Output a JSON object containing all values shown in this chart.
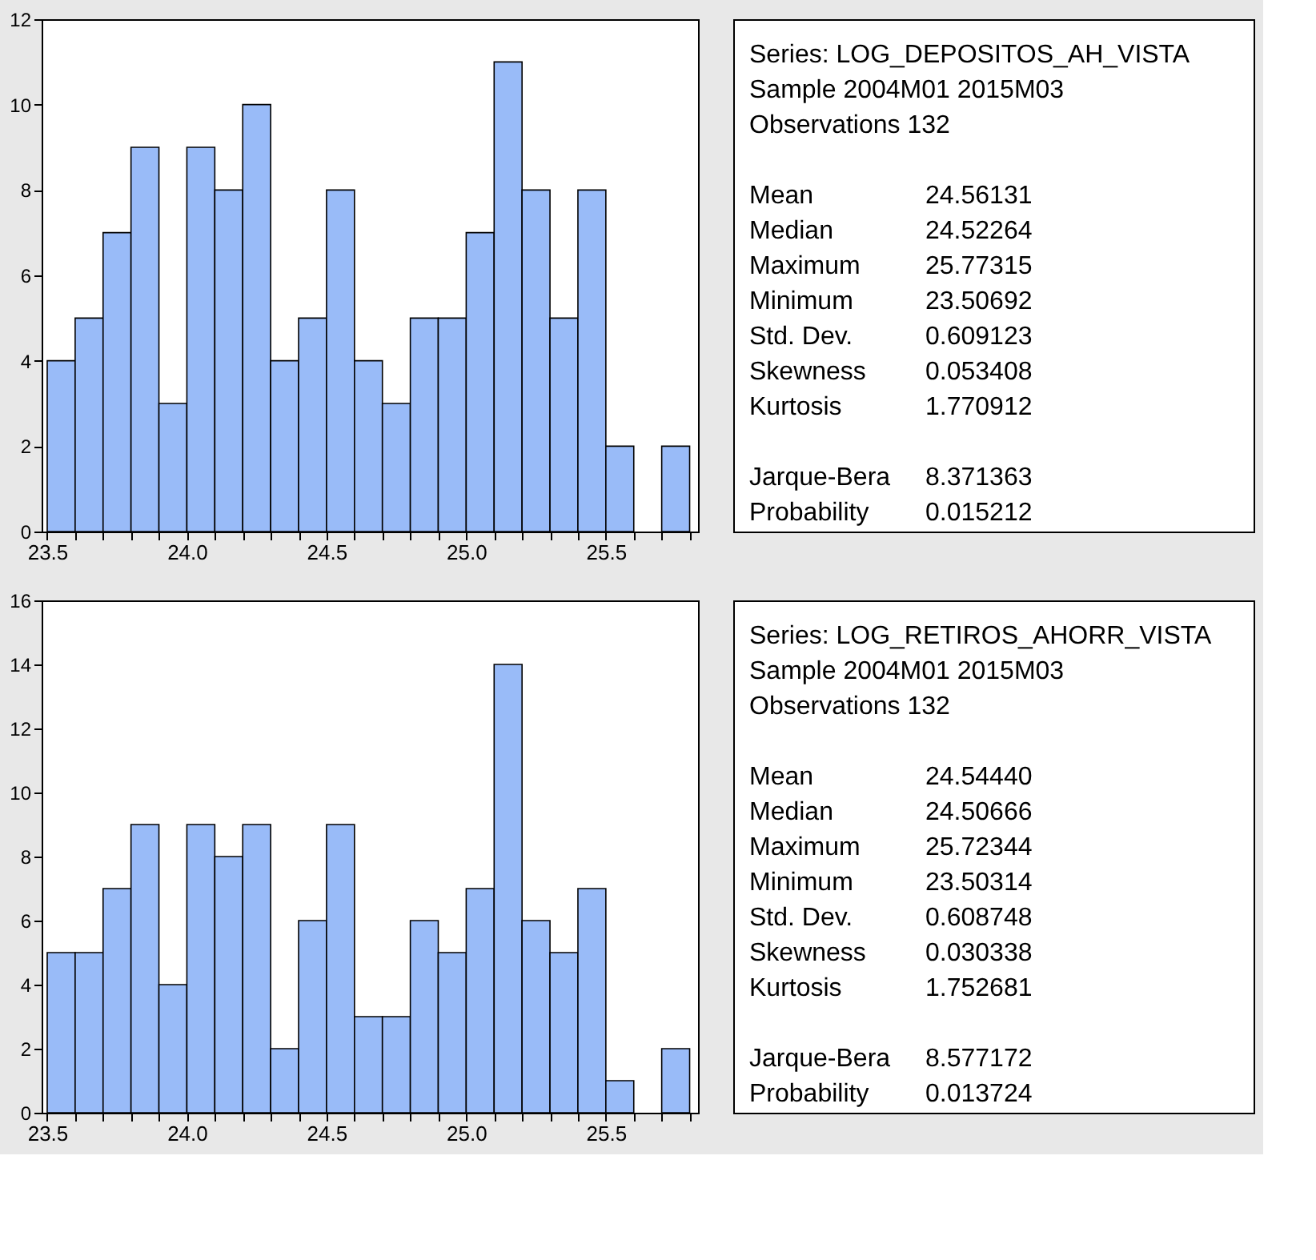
{
  "chart_data": [
    {
      "type": "histogram",
      "bins": [
        23.5,
        23.6,
        23.7,
        23.8,
        23.9,
        24.0,
        24.1,
        24.2,
        24.3,
        24.4,
        24.5,
        24.6,
        24.7,
        24.8,
        24.9,
        25.0,
        25.1,
        25.2,
        25.3,
        25.4,
        25.5,
        25.6,
        25.7,
        25.8
      ],
      "values": [
        4,
        5,
        7,
        9,
        3,
        9,
        8,
        10,
        4,
        5,
        8,
        4,
        3,
        5,
        5,
        7,
        11,
        8,
        5,
        8,
        2,
        0,
        2
      ],
      "color": "#99bbf8",
      "xlim": [
        23.48,
        25.83
      ],
      "xticks": [
        23.5,
        {
          "value": 23.6,
          "label": null
        },
        {
          "value": 23.7,
          "label": null
        },
        {
          "value": 23.8,
          "label": null
        },
        {
          "value": 23.9,
          "label": null
        },
        {
          "value": 24.0,
          "label": "24.0"
        },
        {
          "value": 24.1,
          "label": null
        },
        {
          "value": 24.2,
          "label": null
        },
        {
          "value": 24.3,
          "label": null
        },
        {
          "value": 24.4,
          "label": null
        },
        24.5,
        {
          "value": 24.6,
          "label": null
        },
        {
          "value": 24.7,
          "label": null
        },
        {
          "value": 24.8,
          "label": null
        },
        {
          "value": 24.9,
          "label": null
        },
        {
          "value": 25.0,
          "label": "25.0"
        },
        {
          "value": 25.1,
          "label": null
        },
        {
          "value": 25.2,
          "label": null
        },
        {
          "value": 25.3,
          "label": null
        },
        {
          "value": 25.4,
          "label": null
        },
        25.5,
        {
          "value": 25.6,
          "label": null
        },
        {
          "value": 25.7,
          "label": null
        },
        {
          "value": 25.8,
          "label": null
        }
      ],
      "ylim": [
        0,
        12
      ],
      "yticks": [
        0,
        2,
        4,
        6,
        8,
        10,
        12
      ],
      "grid": false,
      "annotations": [
        "Series: LOG_DEPOSITOS_AH_VISTA",
        "Sample 2004M01 2015M03",
        "Observations 132",
        "Mean 24.56131",
        "Median 24.52264",
        "Maximum 25.77315",
        "Minimum 23.50692",
        "Std. Dev. 0.609123",
        "Skewness 0.053408",
        "Kurtosis 1.770912",
        "Jarque-Bera 8.371363",
        "Probability 0.015212"
      ]
    },
    {
      "type": "histogram",
      "bins": [
        23.5,
        23.6,
        23.7,
        23.8,
        23.9,
        24.0,
        24.1,
        24.2,
        24.3,
        24.4,
        24.5,
        24.6,
        24.7,
        24.8,
        24.9,
        25.0,
        25.1,
        25.2,
        25.3,
        25.4,
        25.5,
        25.6,
        25.7,
        25.8
      ],
      "values": [
        5,
        5,
        7,
        9,
        4,
        9,
        8,
        9,
        2,
        6,
        9,
        3,
        3,
        6,
        5,
        7,
        14,
        6,
        5,
        7,
        1,
        0,
        2
      ],
      "color": "#99bbf8",
      "xlim": [
        23.48,
        25.83
      ],
      "xticks": [
        23.5,
        {
          "value": 23.6,
          "label": null
        },
        {
          "value": 23.7,
          "label": null
        },
        {
          "value": 23.8,
          "label": null
        },
        {
          "value": 23.9,
          "label": null
        },
        {
          "value": 24.0,
          "label": "24.0"
        },
        {
          "value": 24.1,
          "label": null
        },
        {
          "value": 24.2,
          "label": null
        },
        {
          "value": 24.3,
          "label": null
        },
        {
          "value": 24.4,
          "label": null
        },
        24.5,
        {
          "value": 24.6,
          "label": null
        },
        {
          "value": 24.7,
          "label": null
        },
        {
          "value": 24.8,
          "label": null
        },
        {
          "value": 24.9,
          "label": null
        },
        {
          "value": 25.0,
          "label": "25.0"
        },
        {
          "value": 25.1,
          "label": null
        },
        {
          "value": 25.2,
          "label": null
        },
        {
          "value": 25.3,
          "label": null
        },
        {
          "value": 25.4,
          "label": null
        },
        25.5,
        {
          "value": 25.6,
          "label": null
        },
        {
          "value": 25.7,
          "label": null
        },
        {
          "value": 25.8,
          "label": null
        }
      ],
      "ylim": [
        0,
        16
      ],
      "yticks": [
        0,
        2,
        4,
        6,
        8,
        10,
        12,
        14,
        16
      ],
      "grid": false,
      "annotations": [
        "Series: LOG_RETIROS_AHORR_VISTA",
        "Sample 2004M01 2015M03",
        "Observations 132",
        "Mean 24.54440",
        "Median 24.50666",
        "Maximum 25.72344",
        "Minimum 23.50314",
        "Std. Dev. 0.608748",
        "Skewness 0.030338",
        "Kurtosis 1.752681",
        "Jarque-Bera 8.577172",
        "Probability 0.013724"
      ]
    }
  ]
}
